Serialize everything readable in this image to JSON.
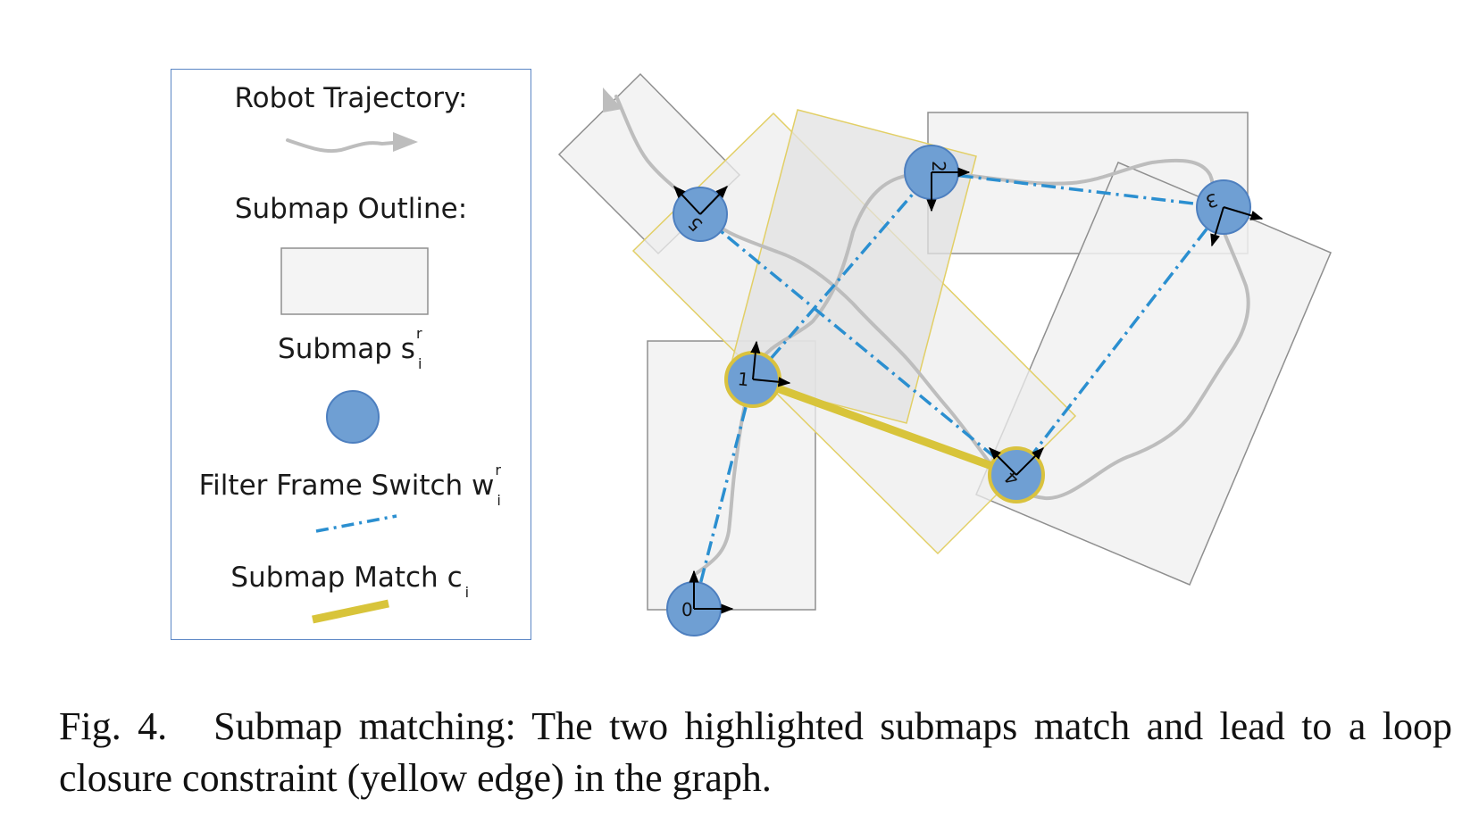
{
  "legend": {
    "trajectory_label": "Robot Trajectory:",
    "outline_label": "Submap Outline:",
    "submap_label": "Submap s",
    "submap_sup": "r",
    "submap_sub": "i",
    "switch_label": "Filter Frame Switch w",
    "switch_sup": "r",
    "switch_sub": "i",
    "match_label": "Submap Match c",
    "match_sub": "i"
  },
  "nodes": [
    {
      "id": "0",
      "label": "0",
      "highlighted": false
    },
    {
      "id": "1",
      "label": "1",
      "highlighted": true
    },
    {
      "id": "2",
      "label": "2",
      "highlighted": false
    },
    {
      "id": "3",
      "label": "3",
      "highlighted": false
    },
    {
      "id": "4",
      "label": "4",
      "highlighted": true
    },
    {
      "id": "5",
      "label": "5",
      "highlighted": false
    }
  ],
  "edges": {
    "switch": [
      [
        "0",
        "1"
      ],
      [
        "1",
        "2"
      ],
      [
        "2",
        "3"
      ],
      [
        "3",
        "4"
      ],
      [
        "4",
        "5"
      ]
    ],
    "match": [
      [
        "1",
        "4"
      ]
    ]
  },
  "colors": {
    "node_fill": "#6f9fd3",
    "node_stroke": "#4d7fbf",
    "highlight_stroke": "#d9c23e",
    "switch_edge": "#2b8fd0",
    "match_edge": "#d8c43a",
    "trajectory": "#bdbdbd",
    "submap_fill": "#f4f4f4",
    "submap_stroke": "#9a9a9a",
    "highlight_submap_stroke": "#e2cf66",
    "legend_border": "#5b86c5"
  },
  "caption": {
    "figure_label": "Fig. 4.",
    "text": "Submap matching: The two highlighted submaps match and lead to a loop closure constraint (yellow edge) in the graph."
  }
}
